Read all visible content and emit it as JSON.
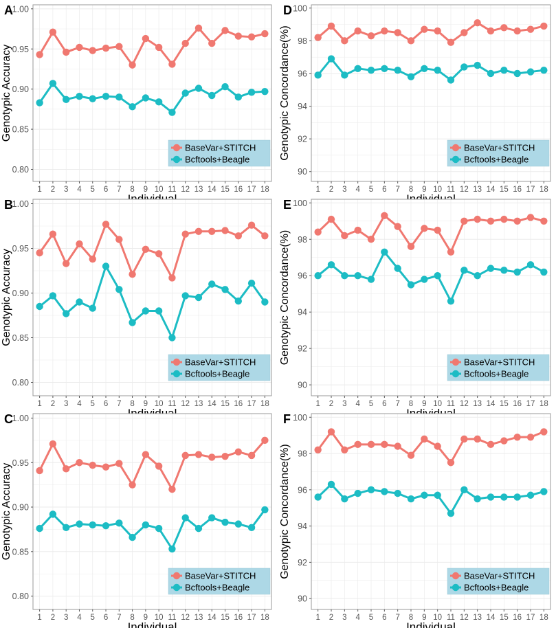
{
  "figure": {
    "legend_labels": [
      "BaseVar+STITCH",
      "Bcftools+Beagle"
    ],
    "colors": {
      "series_a": "#F07870",
      "series_b": "#1CBCC4",
      "legend_bg": "#ADD8E6",
      "grid": "#EBEBEB",
      "border": "#999999"
    }
  },
  "chart_data": [
    {
      "panel_label": "A",
      "type": "line",
      "xlabel": "Individual",
      "ylabel": "Genotypic Accuracy",
      "ylim": [
        0.785,
        1.005
      ],
      "y_ticks": [
        0.8,
        0.85,
        0.9,
        0.95,
        1.0
      ],
      "y_tick_labels": [
        "0.80",
        "0.85",
        "0.90",
        "0.95",
        "1.00"
      ],
      "x": [
        1,
        2,
        3,
        4,
        5,
        6,
        7,
        8,
        9,
        10,
        11,
        12,
        13,
        14,
        15,
        16,
        17,
        18
      ],
      "legend_position": "bottom-right",
      "series": [
        {
          "name": "BaseVar+STITCH",
          "values": [
            0.943,
            0.971,
            0.946,
            0.952,
            0.948,
            0.951,
            0.953,
            0.93,
            0.963,
            0.952,
            0.931,
            0.957,
            0.976,
            0.957,
            0.973,
            0.966,
            0.965,
            0.969
          ]
        },
        {
          "name": "Bcftools+Beagle",
          "values": [
            0.883,
            0.907,
            0.887,
            0.891,
            0.888,
            0.891,
            0.89,
            0.878,
            0.889,
            0.884,
            0.871,
            0.895,
            0.901,
            0.892,
            0.903,
            0.89,
            0.896,
            0.897
          ]
        }
      ]
    },
    {
      "panel_label": "D",
      "type": "line",
      "xlabel": "Individual",
      "ylabel": "Genotypic Concordance(%)",
      "ylim": [
        89.4,
        100.2
      ],
      "y_ticks": [
        90,
        92,
        94,
        96,
        98,
        100
      ],
      "y_tick_labels": [
        "90",
        "92",
        "94",
        "96",
        "98",
        "100"
      ],
      "x": [
        1,
        2,
        3,
        4,
        5,
        6,
        7,
        8,
        9,
        10,
        11,
        12,
        13,
        14,
        15,
        16,
        17,
        18
      ],
      "legend_position": "bottom-right",
      "series": [
        {
          "name": "BaseVar+STITCH",
          "values": [
            98.2,
            98.9,
            98.0,
            98.6,
            98.3,
            98.6,
            98.5,
            98.0,
            98.7,
            98.6,
            97.9,
            98.5,
            99.1,
            98.6,
            98.8,
            98.6,
            98.7,
            98.9
          ]
        },
        {
          "name": "Bcftools+Beagle",
          "values": [
            95.9,
            96.9,
            95.9,
            96.3,
            96.2,
            96.3,
            96.2,
            95.8,
            96.3,
            96.2,
            95.6,
            96.4,
            96.5,
            96.0,
            96.2,
            96.0,
            96.1,
            96.2
          ]
        }
      ]
    },
    {
      "panel_label": "B",
      "type": "line",
      "xlabel": "Individual",
      "ylabel": "Genotypic Accuracy",
      "ylim": [
        0.785,
        1.005
      ],
      "y_ticks": [
        0.8,
        0.85,
        0.9,
        0.95,
        1.0
      ],
      "y_tick_labels": [
        "0.80",
        "0.85",
        "0.90",
        "0.95",
        "1.00"
      ],
      "x": [
        1,
        2,
        3,
        4,
        5,
        6,
        7,
        8,
        9,
        10,
        11,
        12,
        13,
        14,
        15,
        16,
        17,
        18
      ],
      "legend_position": "bottom-right",
      "series": [
        {
          "name": "BaseVar+STITCH",
          "values": [
            0.945,
            0.966,
            0.933,
            0.955,
            0.938,
            0.977,
            0.96,
            0.921,
            0.949,
            0.944,
            0.917,
            0.966,
            0.969,
            0.969,
            0.97,
            0.964,
            0.976,
            0.964
          ]
        },
        {
          "name": "Bcftools+Beagle",
          "values": [
            0.885,
            0.897,
            0.877,
            0.89,
            0.883,
            0.93,
            0.904,
            0.867,
            0.88,
            0.88,
            0.85,
            0.897,
            0.895,
            0.91,
            0.904,
            0.891,
            0.911,
            0.89
          ]
        }
      ]
    },
    {
      "panel_label": "E",
      "type": "line",
      "xlabel": "Individual",
      "ylabel": "Genotypic Concordance(%)",
      "ylim": [
        89.4,
        100.2
      ],
      "y_ticks": [
        90,
        92,
        94,
        96,
        98,
        100
      ],
      "y_tick_labels": [
        "90",
        "92",
        "94",
        "96",
        "98",
        "100"
      ],
      "x": [
        1,
        2,
        3,
        4,
        5,
        6,
        7,
        8,
        9,
        10,
        11,
        12,
        13,
        14,
        15,
        16,
        17,
        18
      ],
      "legend_position": "bottom-right",
      "series": [
        {
          "name": "BaseVar+STITCH",
          "values": [
            98.4,
            99.1,
            98.2,
            98.5,
            98.0,
            99.3,
            98.7,
            97.6,
            98.6,
            98.5,
            97.3,
            99.0,
            99.1,
            99.0,
            99.1,
            99.0,
            99.2,
            99.0
          ]
        },
        {
          "name": "Bcftools+Beagle",
          "values": [
            96.0,
            96.6,
            96.0,
            96.0,
            95.8,
            97.3,
            96.4,
            95.5,
            95.8,
            96.0,
            94.6,
            96.3,
            96.0,
            96.4,
            96.3,
            96.2,
            96.6,
            96.2
          ]
        }
      ]
    },
    {
      "panel_label": "C",
      "type": "line",
      "xlabel": "Individual",
      "ylabel": "Genotypic Accuracy",
      "ylim": [
        0.785,
        1.005
      ],
      "y_ticks": [
        0.8,
        0.85,
        0.9,
        0.95,
        1.0
      ],
      "y_tick_labels": [
        "0.80",
        "0.85",
        "0.90",
        "0.95",
        "1.00"
      ],
      "x": [
        1,
        2,
        3,
        4,
        5,
        6,
        7,
        8,
        9,
        10,
        11,
        12,
        13,
        14,
        15,
        16,
        17,
        18
      ],
      "legend_position": "bottom-right",
      "series": [
        {
          "name": "BaseVar+STITCH",
          "values": [
            0.941,
            0.971,
            0.943,
            0.95,
            0.947,
            0.945,
            0.949,
            0.925,
            0.959,
            0.946,
            0.92,
            0.958,
            0.959,
            0.956,
            0.957,
            0.962,
            0.958,
            0.975
          ]
        },
        {
          "name": "Bcftools+Beagle",
          "values": [
            0.876,
            0.892,
            0.877,
            0.881,
            0.88,
            0.879,
            0.882,
            0.866,
            0.88,
            0.876,
            0.853,
            0.888,
            0.876,
            0.888,
            0.883,
            0.881,
            0.877,
            0.897
          ]
        }
      ]
    },
    {
      "panel_label": "F",
      "type": "line",
      "xlabel": "Individual",
      "ylabel": "Genotypic Concordance(%)",
      "ylim": [
        89.4,
        100.2
      ],
      "y_ticks": [
        90,
        92,
        94,
        96,
        98,
        100
      ],
      "y_tick_labels": [
        "90",
        "92",
        "94",
        "96",
        "98",
        "100"
      ],
      "x": [
        1,
        2,
        3,
        4,
        5,
        6,
        7,
        8,
        9,
        10,
        11,
        12,
        13,
        14,
        15,
        16,
        17,
        18
      ],
      "legend_position": "bottom-right",
      "series": [
        {
          "name": "BaseVar+STITCH",
          "values": [
            98.2,
            99.2,
            98.2,
            98.5,
            98.5,
            98.5,
            98.4,
            97.9,
            98.8,
            98.4,
            97.5,
            98.8,
            98.8,
            98.5,
            98.7,
            98.9,
            98.9,
            99.2
          ]
        },
        {
          "name": "Bcftools+Beagle",
          "values": [
            95.6,
            96.3,
            95.5,
            95.8,
            96.0,
            95.9,
            95.8,
            95.5,
            95.7,
            95.7,
            94.7,
            96.0,
            95.5,
            95.6,
            95.6,
            95.6,
            95.7,
            95.9
          ]
        }
      ]
    }
  ]
}
